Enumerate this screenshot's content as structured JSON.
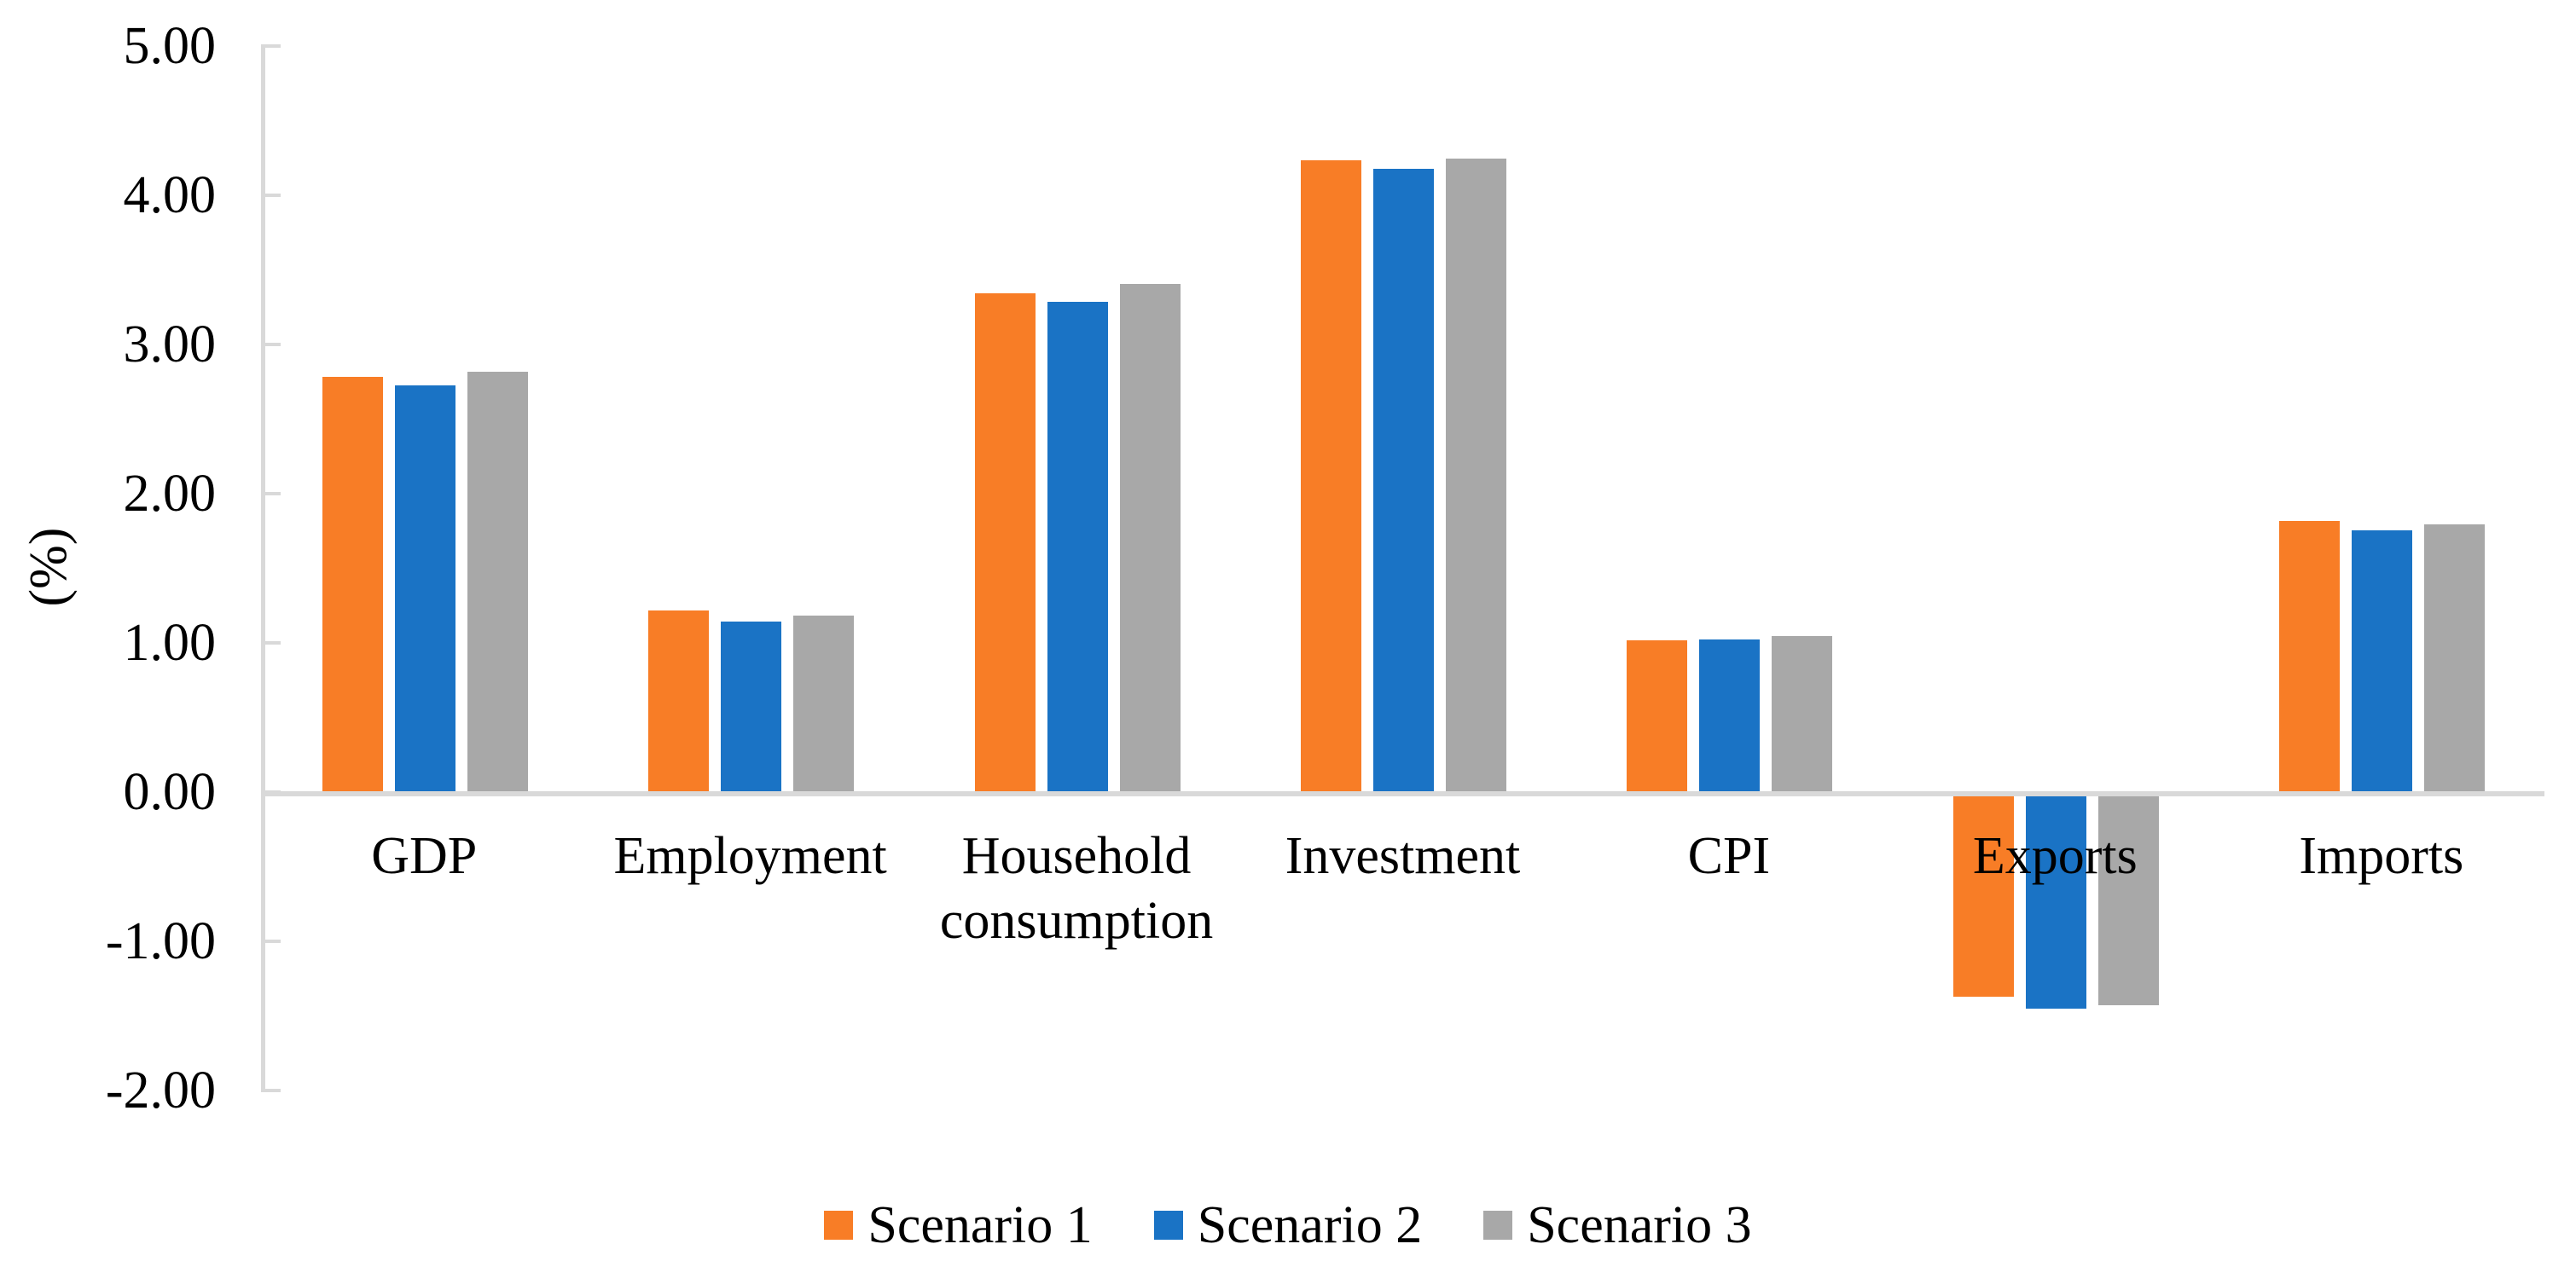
{
  "chart_data": {
    "type": "bar",
    "title": "",
    "ylabel": "(%)",
    "xlabel": "",
    "categories": [
      "GDP",
      "Employment",
      "Household consumption",
      "Investment",
      "CPI",
      "Exports",
      "Imports"
    ],
    "series": [
      {
        "name": "Scenario 1",
        "color": "#F87D26",
        "values": [
          2.78,
          1.21,
          3.34,
          4.23,
          1.01,
          -1.37,
          1.81
        ]
      },
      {
        "name": "Scenario 2",
        "color": "#1A73C5",
        "values": [
          2.72,
          1.14,
          3.28,
          4.17,
          1.02,
          -1.45,
          1.75
        ]
      },
      {
        "name": "Scenario 3",
        "color": "#A8A8A8",
        "values": [
          2.81,
          1.18,
          3.4,
          4.24,
          1.04,
          -1.43,
          1.79
        ]
      }
    ],
    "ylim": [
      -2.0,
      5.0
    ],
    "y_tick_values": [
      5,
      4,
      3,
      2,
      1,
      0,
      -1,
      -2
    ],
    "y_tick_labels": [
      "5.00",
      "4.00",
      "3.00",
      "2.00",
      "1.00",
      "0.00",
      "-1.00",
      "-2.00"
    ],
    "grid": false,
    "legend_position": "bottom",
    "axis_color": "#D9D9D9",
    "text_color": "#000000"
  }
}
